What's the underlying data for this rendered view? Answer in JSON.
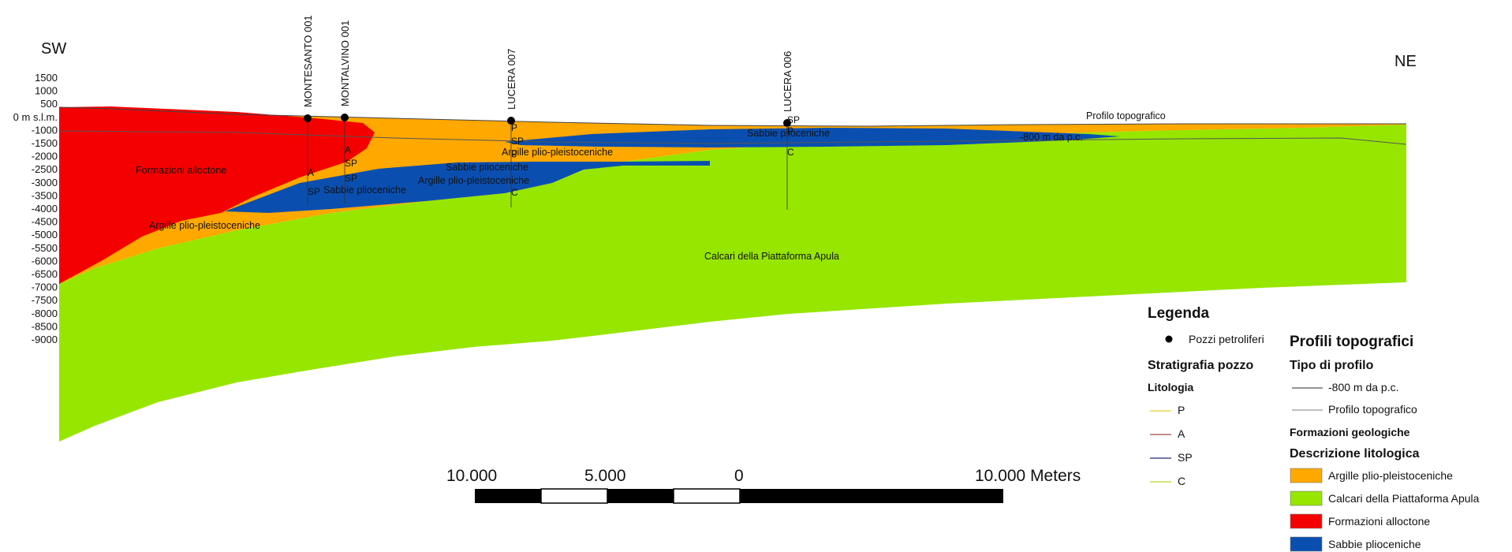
{
  "orientation": {
    "left": "SW",
    "right": "NE"
  },
  "depth_axis": {
    "ticks": [
      "1500",
      "1000",
      "500",
      "0 m s.l.m.",
      "-1000",
      "-1500",
      "-2000",
      "-2500",
      "-3000",
      "-3500",
      "-4000",
      "-4500",
      "-5000",
      "-5500",
      "-6000",
      "-6500",
      "-7000",
      "-7500",
      "-8000",
      "-8500",
      "-9000"
    ]
  },
  "wells": [
    {
      "name": "MONTESANTO 001",
      "strat": [
        "A",
        "SP"
      ]
    },
    {
      "name": "MONTALVINO 001",
      "strat": [
        "A",
        "SP",
        "SP"
      ]
    },
    {
      "name": "LUCERA 007",
      "strat": [
        "P",
        "SP",
        "P",
        "C"
      ]
    },
    {
      "name": "LUCERA 006",
      "strat": [
        "SP",
        "P",
        "C"
      ]
    }
  ],
  "labels": {
    "profilo_topografico": "Profilo topografico",
    "minus800": "-800 m da p.c.",
    "formazioni_alloctone": "Formazioni alloctone",
    "argille_left": "Argille plio-pleistoceniche",
    "argille_mid": "Argille plio-pleistoceniche",
    "argille_upper": "Argille plio-pleistoceniche",
    "sabbie_left": "Sabbie plioceniche",
    "sabbie_mid": "Sabbie plioceniche",
    "sabbie_right": "Sabbie plioceniche",
    "calcari": "Calcari della Piattaforma Apula"
  },
  "scalebar": {
    "ticks": [
      "10.000",
      "5.000",
      "0",
      "10.000 Meters"
    ]
  },
  "legend": {
    "title": "Legenda",
    "wells_item": "Pozzi petroliferi",
    "strat_title": "Stratigrafia pozzo",
    "litologia_title": "Litologia",
    "litologia_items": [
      {
        "label": "P",
        "color": "#e8d94a"
      },
      {
        "label": "A",
        "color": "#b06a6a"
      },
      {
        "label": "SP",
        "color": "#4a4a8a"
      },
      {
        "label": "C",
        "color": "#c8d84a"
      }
    ],
    "profili_title": "Profili topografici",
    "tipo_title": "Tipo di profilo",
    "tipo_items": [
      {
        "label": "-800 m da p.c.",
        "color": "#555555"
      },
      {
        "label": "Profilo topografico",
        "color": "#999999"
      }
    ],
    "formazioni_title": "Formazioni geologiche",
    "descrizione_title": "Descrizione litologica",
    "descrizione_items": [
      {
        "label": "Argille plio-pleistoceniche",
        "color": "#ffa800"
      },
      {
        "label": "Calcari della Piattaforma Apula",
        "color": "#96e600"
      },
      {
        "label": "Formazioni alloctone",
        "color": "#f50000"
      },
      {
        "label": "Sabbie plioceniche",
        "color": "#0a4fb0"
      }
    ]
  },
  "colors": {
    "argille": "#ffa800",
    "calcari": "#96e600",
    "alloctone": "#f50000",
    "sabbie": "#0a4fb0"
  }
}
